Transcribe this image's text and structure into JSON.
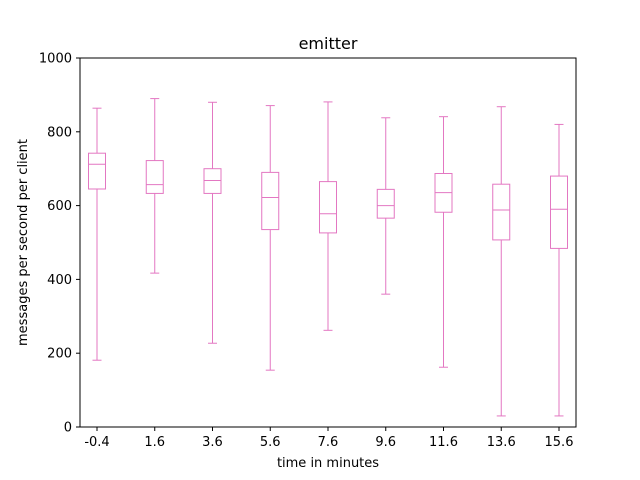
{
  "chart_data": {
    "type": "box",
    "title": "emitter",
    "xlabel": "time in minutes",
    "ylabel": "messages per second per client",
    "ylim": [
      0,
      1000
    ],
    "yticks": [
      0,
      200,
      400,
      600,
      800,
      1000
    ],
    "grid": false,
    "color": "#e377c2",
    "categories": [
      "-0.4",
      "1.6",
      "3.6",
      "5.6",
      "7.6",
      "9.6",
      "11.6",
      "13.6",
      "15.6"
    ],
    "boxes": [
      {
        "whisker_low": 181,
        "q1": 645,
        "median": 712,
        "q3": 742,
        "whisker_high": 864
      },
      {
        "whisker_low": 417,
        "q1": 633,
        "median": 657,
        "q3": 722,
        "whisker_high": 890
      },
      {
        "whisker_low": 227,
        "q1": 633,
        "median": 668,
        "q3": 700,
        "whisker_high": 880
      },
      {
        "whisker_low": 154,
        "q1": 535,
        "median": 622,
        "q3": 690,
        "whisker_high": 871
      },
      {
        "whisker_low": 262,
        "q1": 526,
        "median": 578,
        "q3": 665,
        "whisker_high": 881
      },
      {
        "whisker_low": 360,
        "q1": 566,
        "median": 600,
        "q3": 644,
        "whisker_high": 838
      },
      {
        "whisker_low": 162,
        "q1": 582,
        "median": 635,
        "q3": 687,
        "whisker_high": 841
      },
      {
        "whisker_low": 30,
        "q1": 507,
        "median": 588,
        "q3": 658,
        "whisker_high": 868
      },
      {
        "whisker_low": 30,
        "q1": 484,
        "median": 590,
        "q3": 680,
        "whisker_high": 820
      }
    ]
  }
}
